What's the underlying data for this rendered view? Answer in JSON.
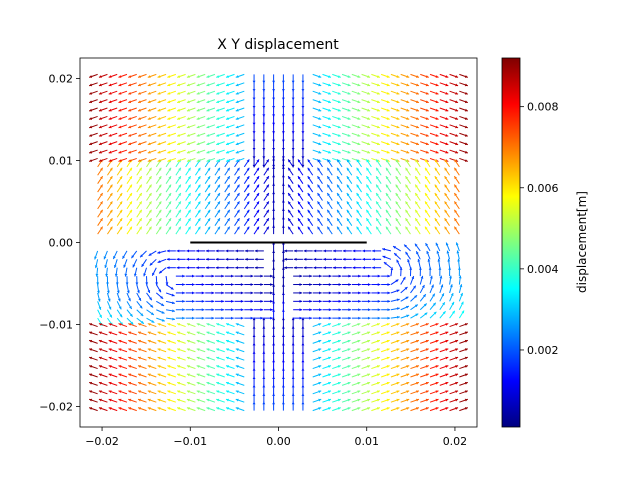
{
  "chart_data": {
    "type": "quiver",
    "title": "X Y displacement",
    "xlabel": "",
    "ylabel": "",
    "xlim": [
      -0.0225,
      0.0225
    ],
    "ylim": [
      -0.0225,
      0.0225
    ],
    "xticks": [
      -0.02,
      -0.01,
      0.0,
      0.01,
      0.02
    ],
    "xtick_labels": [
      "−0.02",
      "−0.01",
      "0.00",
      "0.01",
      "0.02"
    ],
    "yticks": [
      -0.02,
      -0.01,
      0.0,
      0.01,
      0.02
    ],
    "ytick_labels": [
      "−0.02",
      "−0.01",
      "0.00",
      "0.01",
      "0.02"
    ],
    "grid": false,
    "colormap": "jet",
    "crack_segment": {
      "x": [
        -0.01,
        0.01
      ],
      "y": [
        0.0,
        0.0
      ],
      "color": "#000000"
    },
    "field_regions": [
      {
        "y_range": [
          0.0105,
          0.0205
        ],
        "pattern": "arrows point outward from x=0, magnitude grows with |x|",
        "magnitude_range": [
          0.002,
          0.009
        ]
      },
      {
        "y_range": [
          0.001,
          0.0095
        ],
        "pattern": "arrows converge toward x=0, magnitude grows with |x|",
        "magnitude_range": [
          0.001,
          0.006
        ]
      },
      {
        "y_range": [
          -0.0095,
          -0.001
        ],
        "pattern": "arrows swirl around crack tips, mostly low magnitude",
        "magnitude_range": [
          0.0005,
          0.003
        ]
      },
      {
        "y_range": [
          -0.0205,
          -0.0105
        ],
        "pattern": "arrows point outward from x=0, magnitude grows with |x|",
        "magnitude_range": [
          0.002,
          0.009
        ]
      }
    ],
    "x_grid": {
      "start": -0.0205,
      "stop": 0.0205,
      "count": 38
    },
    "y_grid": {
      "start": -0.0205,
      "stop": 0.0205,
      "count": 41
    },
    "colorbar": {
      "label": "displacement[m]",
      "min": 0.0001,
      "max": 0.0092,
      "ticks": [
        0.002,
        0.004,
        0.006,
        0.008
      ],
      "tick_labels": [
        "0.002",
        "0.004",
        "0.006",
        "0.008"
      ]
    }
  }
}
